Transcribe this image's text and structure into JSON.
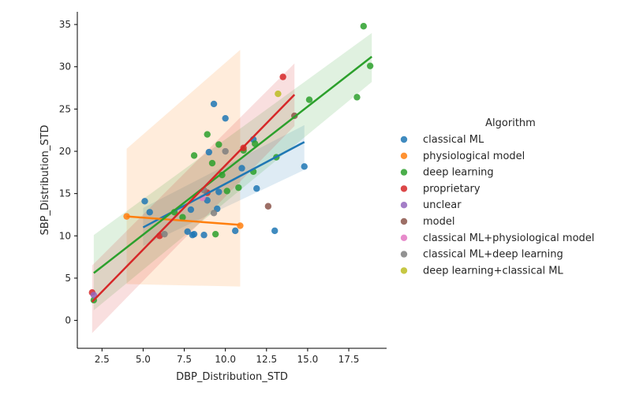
{
  "chart_data": {
    "type": "scatter",
    "xlabel": "DBP_Distribution_STD",
    "ylabel": "SBP_Distribution_STD",
    "xlim": [
      1.0,
      19.8
    ],
    "ylim": [
      -3.3,
      36.5
    ],
    "xticks": [
      "2.5",
      "5.0",
      "7.5",
      "10.0",
      "12.5",
      "15.0",
      "17.5"
    ],
    "xtick_values": [
      2.5,
      5.0,
      7.5,
      10.0,
      12.5,
      15.0,
      17.5
    ],
    "yticks": [
      "0",
      "5",
      "10",
      "15",
      "20",
      "25",
      "30",
      "35"
    ],
    "ytick_values": [
      0,
      5,
      10,
      15,
      20,
      25,
      30,
      35
    ],
    "grid": false,
    "legend_placement": "right",
    "legend_title": "Algorithm",
    "series": [
      {
        "name": "classical ML",
        "color": "#1f77b4",
        "points": [
          [
            5.1,
            14.1
          ],
          [
            5.4,
            12.8
          ],
          [
            7.7,
            10.5
          ],
          [
            7.9,
            13.1
          ],
          [
            8.0,
            10.1
          ],
          [
            8.1,
            10.2
          ],
          [
            8.7,
            10.1
          ],
          [
            8.9,
            14.2
          ],
          [
            9.0,
            19.9
          ],
          [
            9.3,
            25.6
          ],
          [
            9.5,
            13.2
          ],
          [
            9.6,
            15.2
          ],
          [
            10.0,
            23.9
          ],
          [
            10.6,
            10.6
          ],
          [
            11.0,
            18.0
          ],
          [
            11.7,
            21.4
          ],
          [
            11.9,
            15.6
          ],
          [
            13.0,
            10.6
          ],
          [
            14.8,
            18.2
          ]
        ],
        "fit": {
          "x": [
            5.0,
            14.8
          ],
          "y": [
            11.0,
            21.1
          ],
          "band_upper": [
            13.3,
            23.1
          ],
          "band_lower": [
            8.8,
            17.8
          ]
        }
      },
      {
        "name": "physiological model",
        "color": "#ff7f0e",
        "points": [
          [
            4.0,
            12.3
          ],
          [
            10.9,
            11.2
          ]
        ],
        "fit": {
          "x": [
            4.0,
            10.9
          ],
          "y": [
            12.3,
            11.3
          ],
          "band_upper": [
            20.3,
            32.0
          ],
          "band_lower": [
            4.3,
            4.0
          ]
        }
      },
      {
        "name": "deep learning",
        "color": "#2ca02c",
        "points": [
          [
            2.0,
            2.4
          ],
          [
            6.9,
            12.8
          ],
          [
            7.4,
            12.2
          ],
          [
            8.1,
            19.5
          ],
          [
            8.9,
            22.0
          ],
          [
            9.2,
            18.6
          ],
          [
            9.4,
            10.2
          ],
          [
            9.6,
            20.8
          ],
          [
            9.8,
            17.2
          ],
          [
            10.1,
            15.3
          ],
          [
            10.8,
            15.7
          ],
          [
            11.1,
            20.1
          ],
          [
            11.7,
            17.6
          ],
          [
            11.8,
            20.9
          ],
          [
            13.1,
            19.3
          ],
          [
            15.1,
            26.1
          ],
          [
            18.0,
            26.4
          ],
          [
            18.4,
            34.8
          ],
          [
            18.8,
            30.1
          ]
        ],
        "fit": {
          "x": [
            2.0,
            18.9
          ],
          "y": [
            5.6,
            31.2
          ],
          "band_upper": [
            10.1,
            34.0
          ],
          "band_lower": [
            1.2,
            28.2
          ]
        }
      },
      {
        "name": "proprietary",
        "color": "#d62728",
        "points": [
          [
            1.9,
            3.3
          ],
          [
            6.0,
            10.0
          ],
          [
            8.9,
            15.1
          ],
          [
            11.1,
            20.4
          ],
          [
            13.5,
            28.8
          ]
        ],
        "fit": {
          "x": [
            1.9,
            14.2
          ],
          "y": [
            2.2,
            26.7
          ],
          "band_upper": [
            6.5,
            30.4
          ],
          "band_lower": [
            -1.5,
            23.0
          ]
        }
      },
      {
        "name": "unclear",
        "color": "#9467bd",
        "points": [
          [
            2.0,
            3.0
          ]
        ]
      },
      {
        "name": "model",
        "color": "#8c564b",
        "points": [
          [
            12.6,
            13.5
          ],
          [
            14.2,
            24.2
          ]
        ]
      },
      {
        "name": "classical ML+physiological model",
        "color": "#e377c2",
        "points": [
          [
            8.6,
            14.5
          ]
        ]
      },
      {
        "name": "classical ML+deep learning",
        "color": "#7f7f7f",
        "points": [
          [
            6.3,
            10.2
          ],
          [
            8.7,
            15.4
          ],
          [
            9.3,
            12.7
          ],
          [
            10.0,
            20.0
          ]
        ]
      },
      {
        "name": "deep learning+classical ML",
        "color": "#bcbd22",
        "points": [
          [
            13.2,
            26.8
          ]
        ]
      }
    ]
  }
}
